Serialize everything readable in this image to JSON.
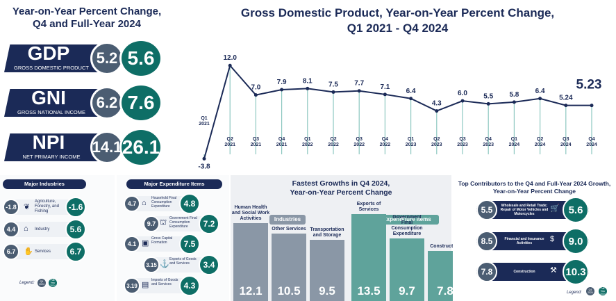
{
  "left_panel": {
    "title_line1": "Year-on-Year Percent Change,",
    "title_line2": "Q4 and Full-Year 2024",
    "metrics": [
      {
        "abbr": "GDP",
        "full": "GROSS DOMESTIC PRODUCT",
        "q4": "5.2",
        "fy": "5.6"
      },
      {
        "abbr": "GNI",
        "full": "GROSS NATIONAL INCOME",
        "q4": "6.2",
        "fy": "7.6"
      },
      {
        "abbr": "NPI",
        "full": "NET PRIMARY INCOME",
        "q4": "14.1",
        "fy": "26.1"
      }
    ]
  },
  "chart_data": {
    "type": "line",
    "title": "Gross Domestic Product, Year-on-Year Percent Change,",
    "subtitle": "Q1 2021 - Q4 2024",
    "x": [
      {
        "q": "Q1",
        "y": "2021"
      },
      {
        "q": "Q2",
        "y": "2021"
      },
      {
        "q": "Q3",
        "y": "2021"
      },
      {
        "q": "Q4",
        "y": "2021"
      },
      {
        "q": "Q1",
        "y": "2022"
      },
      {
        "q": "Q2",
        "y": "2022"
      },
      {
        "q": "Q3",
        "y": "2022"
      },
      {
        "q": "Q4",
        "y": "2022"
      },
      {
        "q": "Q1",
        "y": "2023"
      },
      {
        "q": "Q2",
        "y": "2023"
      },
      {
        "q": "Q3",
        "y": "2023"
      },
      {
        "q": "Q4",
        "y": "2023"
      },
      {
        "q": "Q1",
        "y": "2024"
      },
      {
        "q": "Q2",
        "y": "2024"
      },
      {
        "q": "Q3",
        "y": "2024"
      },
      {
        "q": "Q4",
        "y": "2024"
      }
    ],
    "values": [
      -3.8,
      12.0,
      7.0,
      7.9,
      8.1,
      7.5,
      7.7,
      7.1,
      6.4,
      4.3,
      6.0,
      5.5,
      5.8,
      6.4,
      5.24,
      5.23
    ],
    "labels": [
      "-3.8",
      "12.0",
      "7.0",
      "7.9",
      "8.1",
      "7.5",
      "7.7",
      "7.1",
      "6.4",
      "4.3",
      "6.0",
      "5.5",
      "5.8",
      "6.4",
      "5.24",
      "5.23"
    ],
    "ylim": [
      -4,
      12.5
    ],
    "grid": false,
    "line_color": "#1b2a57",
    "drop_line_color": "#8cc7c0"
  },
  "industries": {
    "header": "Major Industries",
    "rows": [
      {
        "name": "Agriculture, Forestry, and Fishing",
        "q4": "-1.8",
        "fy": "-1.6",
        "icon": "plant-icon"
      },
      {
        "name": "Industry",
        "q4": "4.4",
        "fy": "5.6",
        "icon": "factory-icon"
      },
      {
        "name": "Services",
        "q4": "6.7",
        "fy": "6.7",
        "icon": "hand-service-icon"
      }
    ],
    "legend": "Legend:",
    "legend_q4": "Q4 2024",
    "legend_fy": "Full-Year 2024"
  },
  "expenditure": {
    "header": "Major Expenditure Items",
    "rows": [
      {
        "name": "Household Final Consumption Expenditure",
        "q4": "4.7",
        "fy": "4.8",
        "icon": "house-icon"
      },
      {
        "name": "Government Final Consumption Expenditure",
        "q4": "9.7",
        "fy": "7.2",
        "icon": "government-icon"
      },
      {
        "name": "Gross Capital Formation",
        "q4": "4.1",
        "fy": "7.5",
        "icon": "train-icon"
      },
      {
        "name": "Exports of Goods and Services",
        "q4": "3.15",
        "fy": "3.4",
        "icon": "ship-icon"
      },
      {
        "name": "Imports of Goods and Services",
        "q4": "3.19",
        "fy": "4.3",
        "icon": "container-icon"
      }
    ]
  },
  "fastest_growth": {
    "title_line1": "Fastest Growths in Q4 2024,",
    "title_line2": "Year-on-Year Percent Change",
    "industries_label": "Industries",
    "expenditure_label": "Expenditure Items",
    "industries": [
      {
        "name": "Human Health and Social Work Activities",
        "value": 12.1,
        "label": "12.1"
      },
      {
        "name": "Other Services",
        "value": 10.5,
        "label": "10.5"
      },
      {
        "name": "Transportation and Storage",
        "value": 9.5,
        "label": "9.5"
      }
    ],
    "expenditure": [
      {
        "name": "Exports of Services",
        "value": 13.5,
        "label": "13.5"
      },
      {
        "name": "Government Final Consumption Expenditure",
        "value": 9.7,
        "label": "9.7"
      },
      {
        "name": "Construction",
        "value": 7.8,
        "label": "7.8"
      }
    ],
    "colors": {
      "industries": "#8a97a6",
      "expenditure": "#5fa39b"
    }
  },
  "top_contributors": {
    "title_line1": "Top Contributors to the Q4 and Full-Year 2024 Growth,",
    "title_line2": "Year-on-Year Percent Change",
    "rows": [
      {
        "name": "Wholesale and Retail Trade; Repair of Motor Vehicles and Motorcycles",
        "q4": "5.5",
        "fy": "5.6",
        "icon": "cart-icon"
      },
      {
        "name": "Financial and Insurance Activities",
        "q4": "8.5",
        "fy": "9.0",
        "icon": "money-icon"
      },
      {
        "name": "Construction",
        "q4": "7.8",
        "fy": "10.3",
        "icon": "construction-icon"
      }
    ],
    "legend": "Legend:",
    "legend_q4": "Q4 2024",
    "legend_fy": "Full-Year 2024"
  }
}
